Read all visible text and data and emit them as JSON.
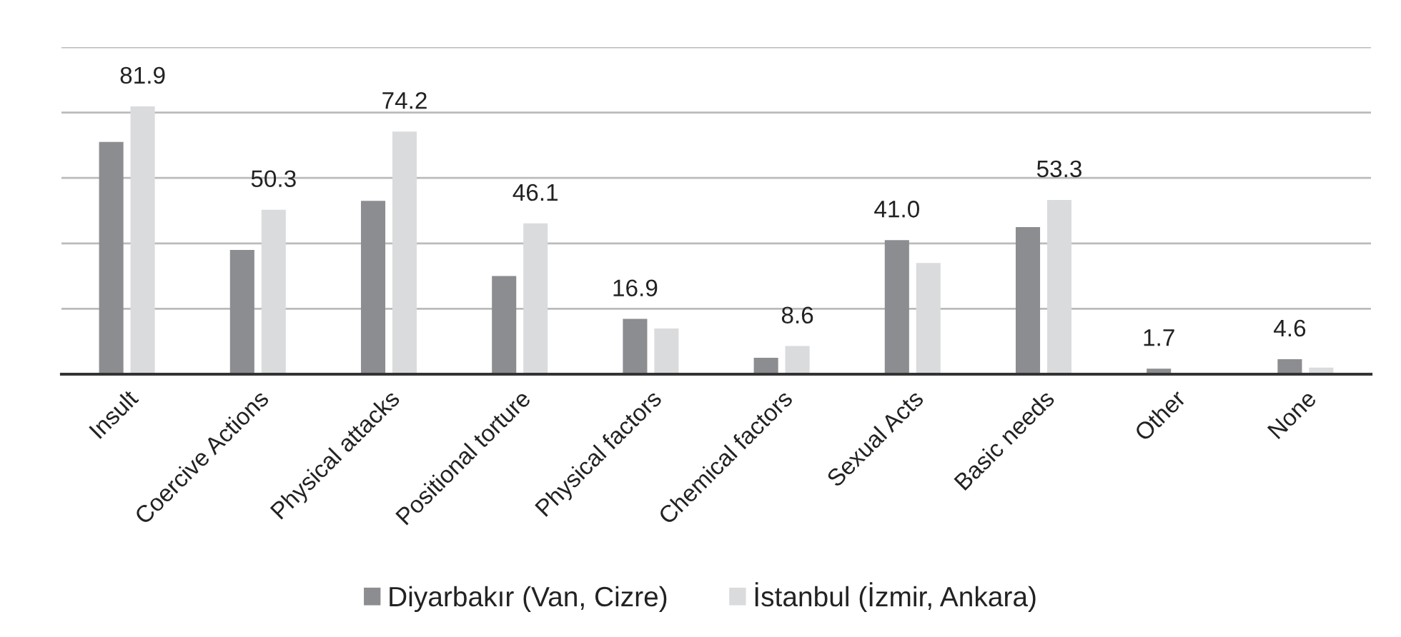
{
  "chart_data": {
    "type": "bar",
    "categories": [
      "Insult",
      "Coercive Actions",
      "Physical attacks",
      "Positional torture",
      "Physical factors",
      "Chemical factors",
      "Sexual Acts",
      "Basic needs",
      "Other",
      "None"
    ],
    "series": [
      {
        "name": "Diyarbakır (Van, Cizre)",
        "color": "#8c8d91",
        "values": [
          71,
          38,
          53,
          30,
          16.9,
          5,
          41.0,
          45,
          1.7,
          4.6
        ],
        "value_labels": [
          null,
          null,
          null,
          null,
          "16.9",
          null,
          "41.0",
          null,
          "1.7",
          "4.6"
        ]
      },
      {
        "name": "İstanbul (İzmir, Ankara)",
        "color": "#dadbdd",
        "values": [
          81.9,
          50.3,
          74.2,
          46.1,
          14,
          8.6,
          34,
          53.3,
          0,
          2
        ],
        "value_labels": [
          "81.9",
          "50.3",
          "74.2",
          "46.1",
          null,
          "8.6",
          null,
          "53.3",
          null,
          null
        ]
      }
    ],
    "ylim": [
      0,
      100
    ],
    "yticks": [
      {
        "value": 0,
        "label": null
      },
      {
        "value": 20,
        "label": null
      },
      {
        "value": 40,
        "label": null
      },
      {
        "value": 60,
        "label": null
      },
      {
        "value": 80,
        "label": null
      },
      {
        "value": 100,
        "label": null
      }
    ],
    "grid": "y",
    "legend": "bottom",
    "tick_labels": "x"
  }
}
